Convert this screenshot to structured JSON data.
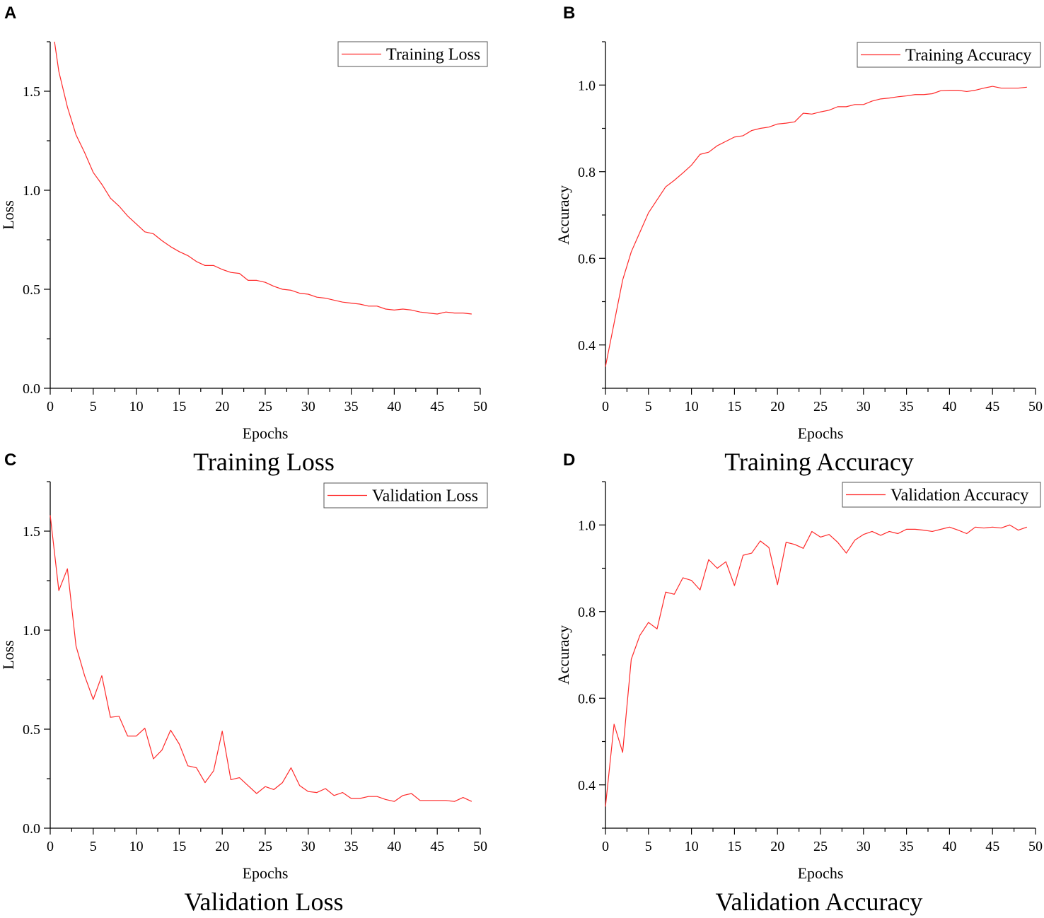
{
  "colors": {
    "series": "#ff2a2a",
    "axis": "#000000"
  },
  "chart_data": [
    {
      "id": "A",
      "panel_letter": "A",
      "type": "line",
      "title": "Training Loss",
      "xlabel": "Epochs",
      "ylabel": "Loss",
      "xlim": [
        0,
        50
      ],
      "ylim": [
        0,
        1.75
      ],
      "xticks": [
        0,
        5,
        10,
        15,
        20,
        25,
        30,
        35,
        40,
        45,
        50
      ],
      "yticks": [
        0.0,
        0.5,
        1.0,
        1.5
      ],
      "ytick_labels": [
        "0.0",
        "0.5",
        "1.0",
        "1.5"
      ],
      "grid": false,
      "legend_position": "top-right",
      "series": [
        {
          "name": "Training Loss",
          "x": [
            0.5,
            1,
            2,
            3,
            4,
            5,
            6,
            7,
            8,
            9,
            10,
            11,
            12,
            13,
            14,
            15,
            16,
            17,
            18,
            19,
            20,
            21,
            22,
            23,
            24,
            25,
            26,
            27,
            28,
            29,
            30,
            31,
            32,
            33,
            34,
            35,
            36,
            37,
            38,
            39,
            40,
            41,
            42,
            43,
            44,
            45,
            46,
            47,
            48,
            49
          ],
          "values": [
            1.75,
            1.6,
            1.42,
            1.28,
            1.19,
            1.09,
            1.03,
            0.96,
            0.92,
            0.87,
            0.83,
            0.79,
            0.78,
            0.745,
            0.715,
            0.69,
            0.67,
            0.64,
            0.62,
            0.62,
            0.6,
            0.585,
            0.58,
            0.545,
            0.545,
            0.535,
            0.515,
            0.5,
            0.495,
            0.48,
            0.475,
            0.46,
            0.455,
            0.445,
            0.435,
            0.43,
            0.425,
            0.415,
            0.415,
            0.4,
            0.395,
            0.4,
            0.395,
            0.385,
            0.38,
            0.375,
            0.385,
            0.38,
            0.38,
            0.375
          ]
        }
      ]
    },
    {
      "id": "B",
      "panel_letter": "B",
      "type": "line",
      "title": "Training Accuracy",
      "xlabel": "Epochs",
      "ylabel": "Accuracy",
      "xlim": [
        0,
        50
      ],
      "ylim": [
        0.3,
        1.1
      ],
      "xticks": [
        0,
        5,
        10,
        15,
        20,
        25,
        30,
        35,
        40,
        45,
        50
      ],
      "yticks": [
        0.4,
        0.6,
        0.8,
        1.0
      ],
      "ytick_labels": [
        "0.4",
        "0.6",
        "0.8",
        "1.0"
      ],
      "grid": false,
      "legend_position": "top-right",
      "series": [
        {
          "name": "Training Accuracy",
          "x": [
            0,
            1,
            2,
            3,
            4,
            5,
            6,
            7,
            8,
            9,
            10,
            11,
            12,
            13,
            14,
            15,
            16,
            17,
            18,
            19,
            20,
            21,
            22,
            23,
            24,
            25,
            26,
            27,
            28,
            29,
            30,
            31,
            32,
            33,
            34,
            35,
            36,
            37,
            38,
            39,
            40,
            41,
            42,
            43,
            44,
            45,
            46,
            47,
            48,
            49
          ],
          "values": [
            0.35,
            0.45,
            0.55,
            0.615,
            0.66,
            0.705,
            0.735,
            0.765,
            0.78,
            0.797,
            0.815,
            0.84,
            0.845,
            0.86,
            0.87,
            0.88,
            0.883,
            0.895,
            0.9,
            0.903,
            0.91,
            0.912,
            0.915,
            0.935,
            0.933,
            0.938,
            0.942,
            0.95,
            0.95,
            0.955,
            0.955,
            0.963,
            0.968,
            0.97,
            0.973,
            0.975,
            0.978,
            0.978,
            0.98,
            0.987,
            0.988,
            0.988,
            0.985,
            0.988,
            0.993,
            0.997,
            0.993,
            0.993,
            0.993,
            0.995
          ]
        }
      ]
    },
    {
      "id": "C",
      "panel_letter": "C",
      "type": "line",
      "title": "Validation Loss",
      "xlabel": "Epochs",
      "ylabel": "Loss",
      "xlim": [
        0,
        50
      ],
      "ylim": [
        0,
        1.75
      ],
      "xticks": [
        0,
        5,
        10,
        15,
        20,
        25,
        30,
        35,
        40,
        45,
        50
      ],
      "yticks": [
        0.0,
        0.5,
        1.0,
        1.5
      ],
      "ytick_labels": [
        "0.0",
        "0.5",
        "1.0",
        "1.5"
      ],
      "grid": false,
      "legend_position": "top-right",
      "series": [
        {
          "name": "Validation Loss",
          "x": [
            0,
            1,
            2,
            3,
            4,
            5,
            6,
            7,
            8,
            9,
            10,
            11,
            12,
            13,
            14,
            15,
            16,
            17,
            18,
            19,
            20,
            21,
            22,
            23,
            24,
            25,
            26,
            27,
            28,
            29,
            30,
            31,
            32,
            33,
            34,
            35,
            36,
            37,
            38,
            39,
            40,
            41,
            42,
            43,
            44,
            45,
            46,
            47,
            48,
            49
          ],
          "values": [
            1.58,
            1.2,
            1.31,
            0.92,
            0.77,
            0.65,
            0.77,
            0.56,
            0.565,
            0.465,
            0.465,
            0.505,
            0.35,
            0.395,
            0.495,
            0.425,
            0.315,
            0.305,
            0.23,
            0.29,
            0.49,
            0.245,
            0.255,
            0.215,
            0.175,
            0.21,
            0.195,
            0.23,
            0.305,
            0.215,
            0.185,
            0.18,
            0.2,
            0.165,
            0.18,
            0.15,
            0.15,
            0.16,
            0.16,
            0.145,
            0.135,
            0.165,
            0.175,
            0.14,
            0.14,
            0.14,
            0.14,
            0.135,
            0.155,
            0.135
          ]
        }
      ]
    },
    {
      "id": "D",
      "panel_letter": "D",
      "type": "line",
      "title": "Validation Accuracy",
      "xlabel": "Epochs",
      "ylabel": "Accuracy",
      "xlim": [
        0,
        50
      ],
      "ylim": [
        0.3,
        1.1
      ],
      "xticks": [
        0,
        5,
        10,
        15,
        20,
        25,
        30,
        35,
        40,
        45,
        50
      ],
      "yticks": [
        0.4,
        0.6,
        0.8,
        1.0
      ],
      "ytick_labels": [
        "0.4",
        "0.6",
        "0.8",
        "1.0"
      ],
      "grid": false,
      "legend_position": "top-right",
      "series": [
        {
          "name": "Validation Accuracy",
          "x": [
            0,
            1,
            2,
            3,
            4,
            5,
            6,
            7,
            8,
            9,
            10,
            11,
            12,
            13,
            14,
            15,
            16,
            17,
            18,
            19,
            20,
            21,
            22,
            23,
            24,
            25,
            26,
            27,
            28,
            29,
            30,
            31,
            32,
            33,
            34,
            35,
            36,
            37,
            38,
            39,
            40,
            41,
            42,
            43,
            44,
            45,
            46,
            47,
            48,
            49
          ],
          "values": [
            0.35,
            0.54,
            0.475,
            0.69,
            0.745,
            0.775,
            0.76,
            0.845,
            0.84,
            0.878,
            0.872,
            0.85,
            0.92,
            0.9,
            0.915,
            0.86,
            0.93,
            0.935,
            0.963,
            0.948,
            0.862,
            0.96,
            0.955,
            0.946,
            0.985,
            0.972,
            0.978,
            0.96,
            0.935,
            0.965,
            0.978,
            0.985,
            0.976,
            0.985,
            0.98,
            0.99,
            0.99,
            0.988,
            0.985,
            0.99,
            0.995,
            0.988,
            0.98,
            0.995,
            0.993,
            0.995,
            0.993,
            1.0,
            0.988,
            0.995
          ]
        }
      ]
    }
  ]
}
